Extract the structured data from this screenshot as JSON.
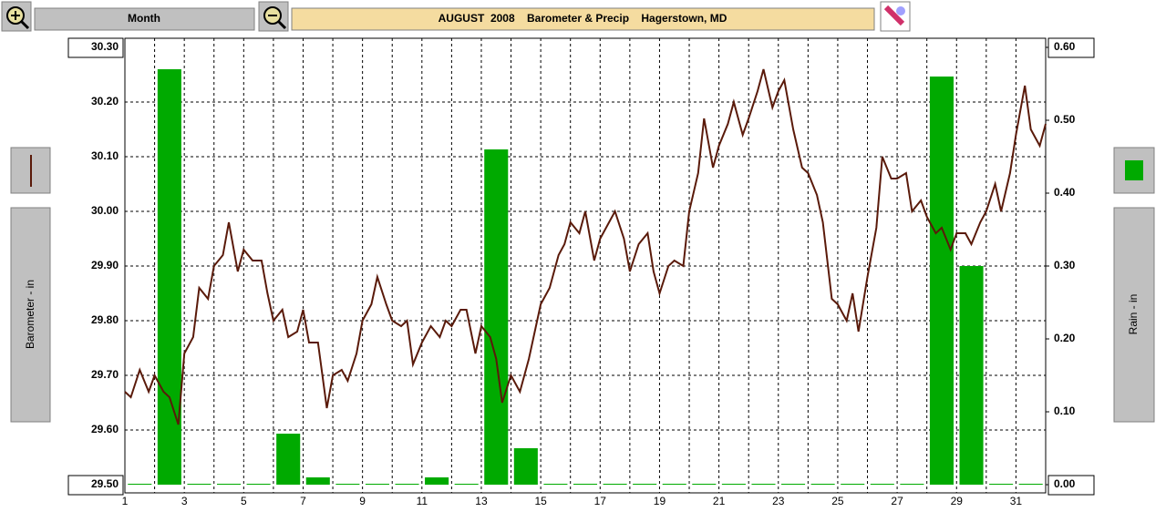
{
  "toolbar": {
    "period": "Month"
  },
  "chart_data": {
    "type": "bar",
    "title": "AUGUST  2008    Barometer & Precip    Hagerstown, MD",
    "ylabel": "Barometer - in",
    "y2label": "Rain - in",
    "xlim": [
      1,
      32
    ],
    "xticks": [
      1,
      3,
      5,
      7,
      9,
      11,
      13,
      15,
      17,
      19,
      21,
      23,
      25,
      27,
      29,
      31
    ],
    "ylim": [
      29.5,
      30.3
    ],
    "yticks": [
      {
        "value": 29.5,
        "label": "29.50"
      },
      {
        "value": 29.6,
        "label": "29.60"
      },
      {
        "value": 29.7,
        "label": "29.70"
      },
      {
        "value": 29.8,
        "label": "29.80"
      },
      {
        "value": 29.9,
        "label": "29.90"
      },
      {
        "value": 30.0,
        "label": "30.00"
      },
      {
        "value": 30.1,
        "label": "30.10"
      },
      {
        "value": 30.2,
        "label": "30.20"
      },
      {
        "value": 30.3,
        "label": "30.30"
      }
    ],
    "y2lim": [
      0,
      0.6
    ],
    "y2ticks": [
      {
        "value": 0,
        "label": "0.00"
      },
      {
        "value": 0.1,
        "label": "0.10"
      },
      {
        "value": 0.2,
        "label": "0.20"
      },
      {
        "value": 0.3,
        "label": "0.30"
      },
      {
        "value": 0.4,
        "label": "0.40"
      },
      {
        "value": 0.5,
        "label": "0.50"
      },
      {
        "value": 0.6,
        "label": "0.60"
      }
    ],
    "grid": true,
    "series": [
      {
        "type": "line",
        "color": "#5a1a0a",
        "x": [
          1.0,
          1.2,
          1.5,
          1.8,
          2.0,
          2.3,
          2.5,
          2.8,
          3.0,
          3.3,
          3.5,
          3.8,
          4.0,
          4.3,
          4.5,
          4.8,
          5.0,
          5.3,
          5.6,
          5.8,
          6.0,
          6.3,
          6.5,
          6.8,
          7.0,
          7.2,
          7.5,
          7.8,
          8.0,
          8.3,
          8.5,
          8.8,
          9.0,
          9.3,
          9.5,
          9.8,
          10.0,
          10.3,
          10.5,
          10.7,
          11.0,
          11.3,
          11.6,
          11.8,
          12.0,
          12.3,
          12.5,
          12.8,
          13.0,
          13.3,
          13.5,
          13.7,
          14.0,
          14.3,
          14.6,
          14.8,
          15.0,
          15.3,
          15.6,
          15.8,
          16.0,
          16.3,
          16.5,
          16.8,
          17.0,
          17.3,
          17.5,
          17.8,
          18.0,
          18.3,
          18.6,
          18.8,
          19.0,
          19.3,
          19.5,
          19.8,
          20.0,
          20.3,
          20.5,
          20.8,
          21.0,
          21.3,
          21.5,
          21.8,
          22.0,
          22.3,
          22.5,
          22.8,
          23.0,
          23.2,
          23.5,
          23.8,
          24.0,
          24.3,
          24.5,
          24.8,
          25.0,
          25.3,
          25.5,
          25.7,
          26.0,
          26.3,
          26.5,
          26.8,
          27.0,
          27.3,
          27.5,
          27.8,
          28.0,
          28.3,
          28.5,
          28.8,
          29.0,
          29.3,
          29.5,
          29.8,
          30.0,
          30.3,
          30.5,
          30.8,
          31.0,
          31.3,
          31.5,
          31.8,
          32.0
        ],
        "values": [
          29.67,
          29.66,
          29.71,
          29.67,
          29.7,
          29.67,
          29.66,
          29.61,
          29.74,
          29.77,
          29.86,
          29.84,
          29.9,
          29.92,
          29.98,
          29.89,
          29.93,
          29.91,
          29.91,
          29.85,
          29.8,
          29.82,
          29.77,
          29.78,
          29.82,
          29.76,
          29.76,
          29.64,
          29.7,
          29.71,
          29.69,
          29.74,
          29.8,
          29.83,
          29.88,
          29.83,
          29.8,
          29.79,
          29.8,
          29.72,
          29.76,
          29.79,
          29.77,
          29.8,
          29.79,
          29.82,
          29.82,
          29.74,
          29.79,
          29.77,
          29.73,
          29.65,
          29.7,
          29.67,
          29.73,
          29.78,
          29.83,
          29.86,
          29.92,
          29.94,
          29.98,
          29.96,
          30.0,
          29.91,
          29.95,
          29.98,
          30.0,
          29.95,
          29.89,
          29.94,
          29.96,
          29.89,
          29.85,
          29.9,
          29.91,
          29.9,
          30.0,
          30.07,
          30.17,
          30.08,
          30.12,
          30.16,
          30.2,
          30.14,
          30.17,
          30.22,
          30.26,
          30.19,
          30.22,
          30.24,
          30.15,
          30.08,
          30.07,
          30.03,
          29.98,
          29.84,
          29.83,
          29.8,
          29.85,
          29.78,
          29.88,
          29.97,
          30.1,
          30.06,
          30.06,
          30.07,
          30.0,
          30.02,
          29.99,
          29.96,
          29.97,
          29.93,
          29.96,
          29.96,
          29.94,
          29.98,
          30.0,
          30.05,
          30.0,
          30.07,
          30.14,
          30.23,
          30.15,
          30.12,
          30.16
        ]
      },
      {
        "type": "bar",
        "axis": "y2",
        "color": "#00aa00",
        "x": [
          1,
          2,
          3,
          4,
          5,
          6,
          7,
          8,
          9,
          10,
          11,
          12,
          13,
          14,
          15,
          16,
          17,
          18,
          19,
          20,
          21,
          22,
          23,
          24,
          25,
          26,
          27,
          28,
          29,
          30,
          31
        ],
        "values": [
          0,
          0.57,
          0,
          0,
          0,
          0.07,
          0.01,
          0,
          0,
          0,
          0.01,
          0,
          0.46,
          0.05,
          0,
          0,
          0,
          0,
          0,
          0,
          0,
          0,
          0,
          0,
          0,
          0,
          0,
          0.56,
          0.3,
          0,
          0
        ]
      }
    ]
  }
}
